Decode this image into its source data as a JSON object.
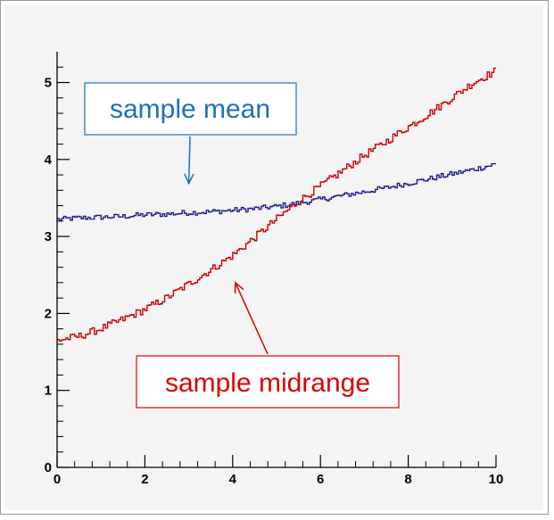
{
  "colors": {
    "frame_background": "#f4f4f4",
    "plot_background": "#f4f4f4",
    "axis": "#000000",
    "mean_series": "#1c1c8c",
    "midrange_series": "#cc0000",
    "mean_annotation": "#1f6fb8",
    "midrange_annotation": "#dd0000"
  },
  "chart_data": {
    "type": "line",
    "step": true,
    "grid": false,
    "legend": "none",
    "xlim": [
      0,
      10
    ],
    "ylim": [
      0,
      5.4
    ],
    "x_ticks": [
      "0",
      "2",
      "4",
      "6",
      "8",
      "10"
    ],
    "y_ticks": [
      "0",
      "1",
      "2",
      "3",
      "4",
      "5"
    ],
    "series": [
      {
        "color": "#1c1c8c",
        "x": [
          0,
          0.5,
          1,
          1.5,
          2,
          2.5,
          3,
          3.5,
          4,
          4.5,
          5,
          5.5,
          6,
          6.5,
          7,
          7.5,
          8,
          8.5,
          9,
          9.5,
          10
        ],
        "y": [
          3.22,
          3.24,
          3.25,
          3.26,
          3.28,
          3.29,
          3.31,
          3.32,
          3.34,
          3.36,
          3.39,
          3.43,
          3.48,
          3.53,
          3.58,
          3.63,
          3.69,
          3.75,
          3.81,
          3.87,
          3.94
        ]
      },
      {
        "color": "#cc0000",
        "x": [
          0,
          0.5,
          1,
          1.5,
          2,
          2.5,
          3,
          3.5,
          4,
          4.5,
          5,
          5.5,
          6,
          6.5,
          7,
          7.5,
          8,
          8.5,
          9,
          9.5,
          10
        ],
        "y": [
          1.65,
          1.7,
          1.8,
          1.92,
          2.05,
          2.2,
          2.38,
          2.56,
          2.75,
          2.98,
          3.22,
          3.45,
          3.65,
          3.85,
          4.05,
          4.23,
          4.42,
          4.6,
          4.8,
          5.0,
          5.15
        ]
      }
    ],
    "annotations": [
      {
        "text": "sample mean",
        "color": "#1f6fb8",
        "points_to": [
          3.0,
          3.55
        ]
      },
      {
        "text": "sample midrange",
        "color": "#dd0000",
        "points_to": [
          4.0,
          2.4
        ]
      }
    ]
  }
}
